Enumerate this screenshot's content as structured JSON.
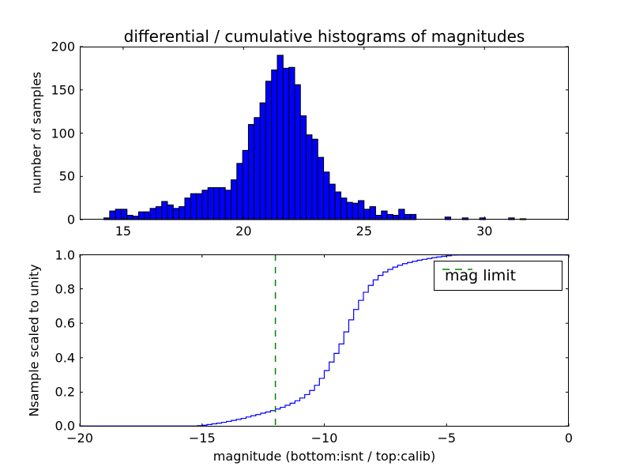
{
  "figure": {
    "title": "differential / cumulative histograms of magnitudes",
    "background_color": "#ffffff",
    "frame_color": "#000000"
  },
  "chart_data": [
    {
      "type": "bar",
      "name": "differential-histogram",
      "title": "differential / cumulative histograms of magnitudes",
      "ylabel": "number of samples",
      "xlim": [
        13.2,
        33.5
      ],
      "ylim": [
        0,
        200
      ],
      "grid": false,
      "xticks": [
        {
          "v": 15,
          "label": "15"
        },
        {
          "v": 20,
          "label": "20"
        },
        {
          "v": 25,
          "label": "25"
        },
        {
          "v": 30,
          "label": "30"
        }
      ],
      "yticks": [
        {
          "v": 0,
          "label": "0"
        },
        {
          "v": 50,
          "label": "50"
        },
        {
          "v": 100,
          "label": "100"
        },
        {
          "v": 150,
          "label": "150"
        },
        {
          "v": 200,
          "label": "200"
        }
      ],
      "bar_fill_color": "#0000ff",
      "bar_edge_color": "#000000",
      "bin_start": 14.2,
      "bin_width": 0.24,
      "counts": [
        2,
        10,
        12,
        12,
        5,
        4,
        9,
        9,
        13,
        15,
        21,
        17,
        13,
        15,
        25,
        30,
        30,
        34,
        37,
        37,
        37,
        34,
        46,
        65,
        80,
        110,
        118,
        135,
        160,
        173,
        190,
        175,
        176,
        156,
        120,
        98,
        93,
        72,
        55,
        41,
        32,
        25,
        20,
        19,
        22,
        12,
        15,
        5,
        10,
        6,
        5,
        12,
        6,
        6,
        0,
        0,
        0,
        0,
        0,
        3,
        0,
        0,
        2,
        0,
        0,
        2,
        0,
        0,
        0,
        0,
        2,
        0,
        1,
        0,
        0,
        0
      ]
    },
    {
      "type": "line",
      "name": "cumulative-histogram",
      "ylabel": "Nsample scaled to unity",
      "xlabel": "magnitude (bottom:isnt / top:calib)",
      "xlim": [
        -20,
        0
      ],
      "ylim": [
        0,
        1
      ],
      "grid": false,
      "xticks": [
        {
          "v": -20,
          "label": "−20"
        },
        {
          "v": -15,
          "label": "−15"
        },
        {
          "v": -10,
          "label": "−10"
        },
        {
          "v": -5,
          "label": "−5"
        },
        {
          "v": 0,
          "label": "0"
        }
      ],
      "yticks": [
        {
          "v": 0.0,
          "label": "0.0"
        },
        {
          "v": 0.2,
          "label": "0.2"
        },
        {
          "v": 0.4,
          "label": "0.4"
        },
        {
          "v": 0.6,
          "label": "0.6"
        },
        {
          "v": 0.8,
          "label": "0.8"
        },
        {
          "v": 1.0,
          "label": "1.0"
        }
      ],
      "line_color": "#0000ff",
      "step_start_x": -15.4,
      "step_dx": 0.2,
      "cumulative_fraction": [
        0.003,
        0.005,
        0.008,
        0.012,
        0.016,
        0.02,
        0.025,
        0.03,
        0.036,
        0.042,
        0.048,
        0.056,
        0.063,
        0.07,
        0.078,
        0.085,
        0.093,
        0.102,
        0.112,
        0.124,
        0.136,
        0.15,
        0.166,
        0.186,
        0.21,
        0.24,
        0.28,
        0.325,
        0.375,
        0.425,
        0.48,
        0.55,
        0.62,
        0.68,
        0.733,
        0.78,
        0.82,
        0.852,
        0.878,
        0.898,
        0.913,
        0.926,
        0.937,
        0.946,
        0.953,
        0.96,
        0.966,
        0.971,
        0.976,
        0.981,
        0.985,
        0.989,
        0.992,
        0.996,
        1.0
      ],
      "vline": {
        "x": -12,
        "color": "#008000",
        "style": "dashed"
      },
      "legend": {
        "label": "mag limit",
        "position": "upper right",
        "line_color": "#008000"
      }
    }
  ]
}
